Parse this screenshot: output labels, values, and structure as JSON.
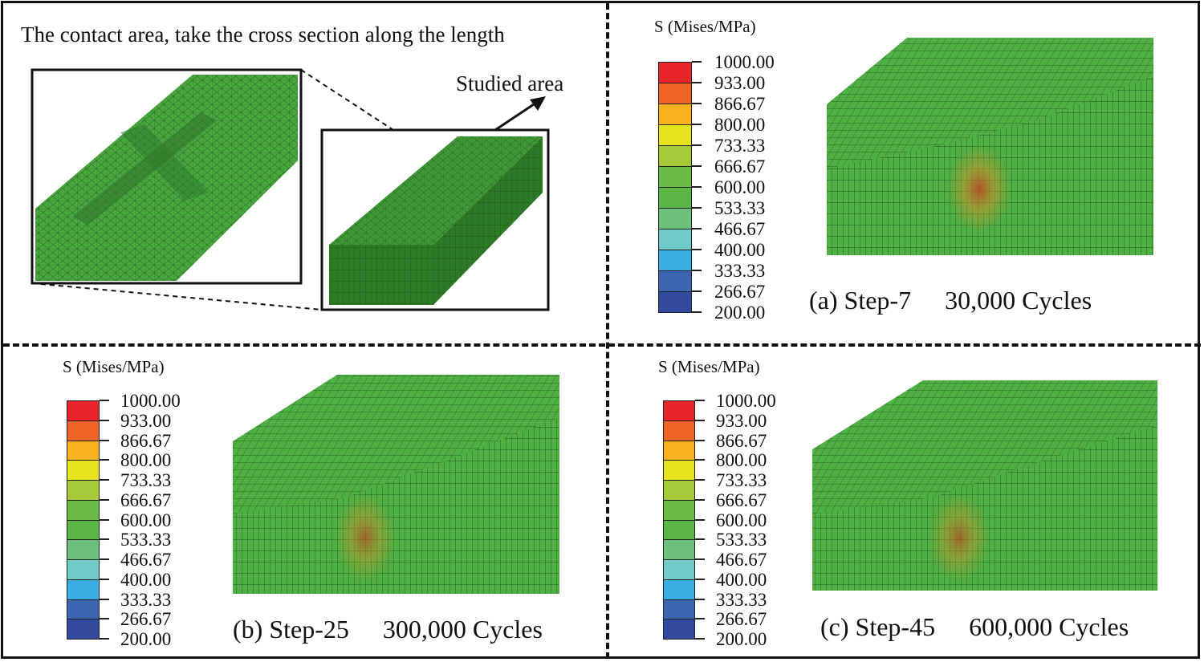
{
  "top_left": {
    "heading": "The contact area, take the cross section along the length",
    "studied_area_label": "Studied area"
  },
  "legend": {
    "title": "S (Mises/MPa)",
    "labels": [
      "1000.00",
      "933.00",
      "866.67",
      "800.00",
      "733.33",
      "666.67",
      "600.00",
      "533.33",
      "466.67",
      "400.00",
      "333.33",
      "266.67",
      "200.00"
    ],
    "colors": [
      "#e8262a",
      "#ee6424",
      "#f9b21f",
      "#e6e31f",
      "#a6cb3a",
      "#6cbb44",
      "#5cb646",
      "#6cc07c",
      "#6fcac8",
      "#3aaee2",
      "#3c66b0",
      "#33499e"
    ]
  },
  "panels": [
    {
      "id": "a",
      "label": "(a) Step-7",
      "cycles": "30,000 Cycles"
    },
    {
      "id": "b",
      "label": "(b) Step-25",
      "cycles": "300,000 Cycles"
    },
    {
      "id": "c",
      "label": "(c) Step-45",
      "cycles": "600,000 Cycles"
    }
  ],
  "colors": {
    "mesh_green": "#4fb044",
    "mesh_dark": "#2f7d2c",
    "hotspot": "#c96a2c"
  }
}
